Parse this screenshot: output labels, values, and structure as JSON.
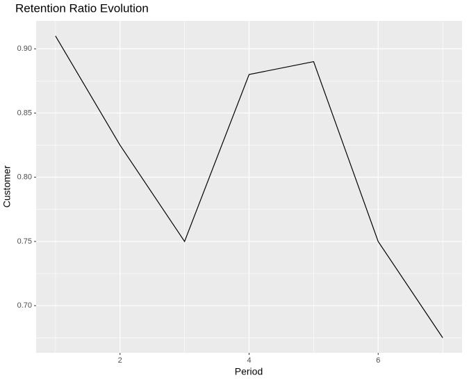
{
  "chart_data": {
    "type": "line",
    "title": "Retention Ratio Evolution",
    "x_label": "Period",
    "y_label": "Customer",
    "x": [
      1,
      2,
      3,
      4,
      5,
      6,
      7
    ],
    "series": [
      {
        "name": "Customer",
        "color": "#000000",
        "values": [
          0.91,
          0.825,
          0.75,
          0.88,
          0.89,
          0.75,
          0.675
        ]
      }
    ],
    "xlim": [
      0.7,
      7.3
    ],
    "xticks": [
      2,
      4,
      6
    ],
    "ylim": [
      0.66325,
      0.92175
    ],
    "yticks": [
      {
        "value": 0.7,
        "label": "0.70"
      },
      {
        "value": 0.75,
        "label": "0.75"
      },
      {
        "value": 0.8,
        "label": "0.80"
      },
      {
        "value": 0.85,
        "label": "0.85"
      },
      {
        "value": 0.9,
        "label": "0.90"
      }
    ],
    "grid": true,
    "minor_grid": true
  }
}
